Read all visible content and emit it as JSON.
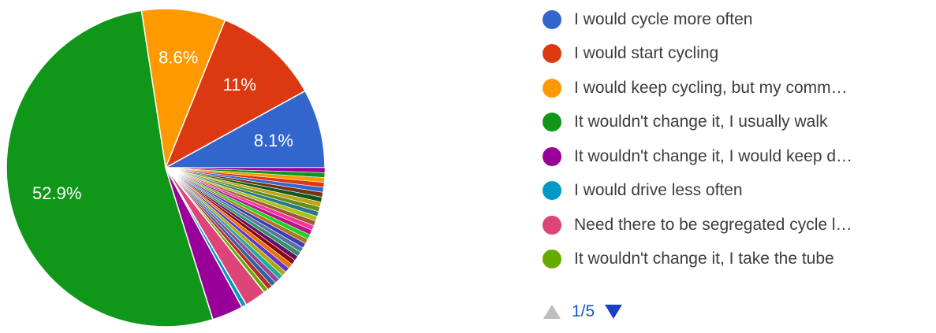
{
  "chart_data": {
    "type": "pie",
    "slices": [
      {
        "label": "I would cycle more often",
        "value": 8.1,
        "color": "#3366cc",
        "data_label": "8.1%"
      },
      {
        "label": "I would start cycling",
        "value": 11.0,
        "color": "#dc3912",
        "data_label": "11%"
      },
      {
        "label": "I would keep cycling, but my comm…",
        "value": 8.6,
        "color": "#ff9900",
        "data_label": "8.6%"
      },
      {
        "label": "It wouldn't change it, I usually walk",
        "value": 52.9,
        "color": "#109618",
        "data_label": "52.9%"
      },
      {
        "label": "It wouldn't change it, I would keep d…",
        "value": 3.2,
        "color": "#990099",
        "data_label": ""
      },
      {
        "label": "I would drive less often",
        "value": 0.5,
        "color": "#0099c6",
        "data_label": ""
      },
      {
        "label": "Need there to be segregated cycle l…",
        "value": 2.2,
        "color": "#dd4477",
        "data_label": ""
      },
      {
        "label": "It wouldn't change it, I take the tube",
        "value": 0.5,
        "color": "#66aa00",
        "data_label": ""
      }
    ],
    "minor_slices": {
      "count": 28,
      "values": [
        0.5,
        0.5,
        0.5,
        0.5,
        0.5,
        0.5,
        0.5,
        0.5,
        0.5,
        0.5,
        0.5,
        0.5,
        0.5,
        0.5,
        0.5,
        0.5,
        0.5,
        0.5,
        0.5,
        0.5,
        0.5,
        0.5,
        0.5,
        0.5,
        0.5,
        0.5,
        0.5,
        0.5
      ],
      "colors": [
        "#b82e2e",
        "#316395",
        "#994499",
        "#22aa99",
        "#aaaa11",
        "#6633cc",
        "#e67300",
        "#8b0707",
        "#651067",
        "#329262",
        "#5574a6",
        "#3b3eac",
        "#b77322",
        "#16d620",
        "#b91383",
        "#f4359e",
        "#9c5935",
        "#a9c413",
        "#2a778d",
        "#668d1c",
        "#bea413",
        "#0c5922",
        "#743411",
        "#3366cc",
        "#dc3912",
        "#ff9900",
        "#109618",
        "#990099"
      ]
    },
    "legend_position": "right"
  },
  "pager": {
    "page_text": "1/5",
    "up_color": "#bdbdbd",
    "down_color": "#1a3fcc"
  }
}
